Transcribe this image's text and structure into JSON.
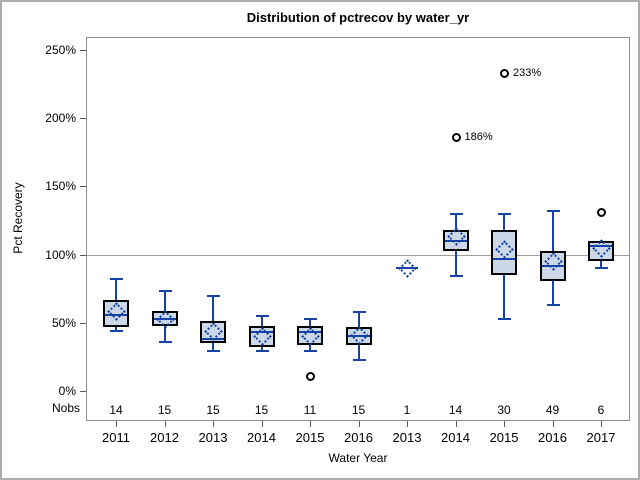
{
  "chart_data": {
    "type": "boxplot",
    "title": "Distribution of pctrecov by water_yr",
    "xlabel": "Water Year",
    "ylabel": "Pct Recovery",
    "nobs_label": "Nobs",
    "ylim": [
      0,
      250
    ],
    "reference_line": 100,
    "grid": false,
    "y_ticks": [
      {
        "value": 0,
        "label": "0%"
      },
      {
        "value": 50,
        "label": "50%"
      },
      {
        "value": 100,
        "label": "100%"
      },
      {
        "value": 150,
        "label": "150%"
      },
      {
        "value": 200,
        "label": "200%"
      },
      {
        "value": 250,
        "label": "250%"
      }
    ],
    "boxes": [
      {
        "year": "2011",
        "nobs": "14",
        "min": 44,
        "q1": 47,
        "median": 56,
        "mean": 59,
        "q3": 67,
        "max": 82,
        "outliers": []
      },
      {
        "year": "2012",
        "nobs": "15",
        "min": 36,
        "q1": 48,
        "median": 53,
        "mean": 53,
        "q3": 59,
        "max": 73,
        "outliers": []
      },
      {
        "year": "2013",
        "nobs": "15",
        "min": 29,
        "q1": 35,
        "median": 38,
        "mean": 44,
        "q3": 51,
        "max": 70,
        "outliers": []
      },
      {
        "year": "2014",
        "nobs": "15",
        "min": 29,
        "q1": 32,
        "median": 43,
        "mean": 40,
        "q3": 48,
        "max": 55,
        "outliers": []
      },
      {
        "year": "2015",
        "nobs": "11",
        "min": 29,
        "q1": 34,
        "median": 43,
        "mean": 40,
        "q3": 48,
        "max": 53,
        "outliers": [
          {
            "value": 11,
            "label": ""
          }
        ]
      },
      {
        "year": "2016",
        "nobs": "15",
        "min": 23,
        "q1": 34,
        "median": 40,
        "mean": 41,
        "q3": 47,
        "max": 58,
        "outliers": []
      },
      {
        "year": "2013",
        "nobs": "1",
        "min": 90,
        "q1": 90,
        "median": 90,
        "mean": 90,
        "q3": 90,
        "max": 90,
        "outliers": []
      },
      {
        "year": "2014",
        "nobs": "14",
        "min": 84,
        "q1": 103,
        "median": 110,
        "mean": 114,
        "q3": 118,
        "max": 130,
        "outliers": [
          {
            "value": 186,
            "label": "186%"
          }
        ]
      },
      {
        "year": "2015",
        "nobs": "30",
        "min": 53,
        "q1": 85,
        "median": 97,
        "mean": 104,
        "q3": 118,
        "max": 130,
        "outliers": [
          {
            "value": 233,
            "label": "233%"
          }
        ]
      },
      {
        "year": "2016",
        "nobs": "49",
        "min": 63,
        "q1": 81,
        "median": 92,
        "mean": 95,
        "q3": 103,
        "max": 132,
        "outliers": []
      },
      {
        "year": "2017",
        "nobs": "6",
        "min": 90,
        "q1": 95,
        "median": 106,
        "mean": 105,
        "q3": 110,
        "max": 110,
        "outliers": [
          {
            "value": 131,
            "label": ""
          }
        ]
      }
    ],
    "colors": {
      "line_blue": "#1443a5",
      "box_fill": "#ccd7e7",
      "box_border": "#000000",
      "reference_line": "#9e9e9e",
      "frame": "#8f8f8f",
      "text": "#000000"
    }
  }
}
